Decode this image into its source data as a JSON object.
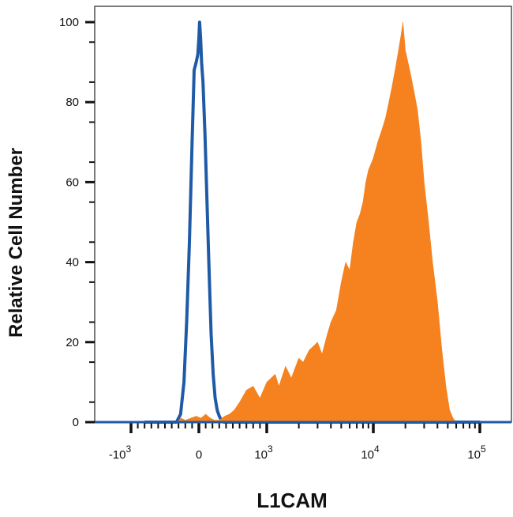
{
  "chart_data": {
    "type": "area",
    "title": "",
    "xlabel": "L1CAM",
    "ylabel": "Relative Cell Number",
    "x_scale": "biexponential",
    "ylim": [
      0,
      100
    ],
    "y_ticks": [
      "0",
      "20",
      "40",
      "60",
      "80",
      "100"
    ],
    "x_ticks": [
      {
        "base": "-10",
        "exp": "3",
        "value": -1000
      },
      {
        "base": "0",
        "exp": "",
        "value": 0
      },
      {
        "base": "10",
        "exp": "3",
        "value": 1000
      },
      {
        "base": "10",
        "exp": "4",
        "value": 10000
      },
      {
        "base": "10",
        "exp": "5",
        "value": 100000
      }
    ],
    "series": [
      {
        "style": "outline",
        "color": "#1f5aa6",
        "points": [
          [
            -800,
            0
          ],
          [
            -330,
            0
          ],
          [
            -270,
            2
          ],
          [
            -220,
            10
          ],
          [
            -180,
            25
          ],
          [
            -140,
            45
          ],
          [
            -100,
            70
          ],
          [
            -70,
            88
          ],
          [
            -40,
            90
          ],
          [
            -15,
            92
          ],
          [
            0,
            96
          ],
          [
            10,
            100
          ],
          [
            25,
            96
          ],
          [
            40,
            90
          ],
          [
            60,
            85
          ],
          [
            90,
            72
          ],
          [
            120,
            55
          ],
          [
            150,
            38
          ],
          [
            180,
            22
          ],
          [
            210,
            12
          ],
          [
            240,
            6
          ],
          [
            270,
            3
          ],
          [
            300,
            1.5
          ],
          [
            330,
            0.5
          ],
          [
            370,
            0
          ],
          [
            100000,
            0
          ]
        ]
      },
      {
        "style": "filled",
        "color": "#f5821f",
        "points": [
          [
            -330,
            0
          ],
          [
            -260,
            1
          ],
          [
            -200,
            0.5
          ],
          [
            -120,
            1
          ],
          [
            -40,
            1.5
          ],
          [
            30,
            1
          ],
          [
            100,
            2
          ],
          [
            170,
            1
          ],
          [
            230,
            0.5
          ],
          [
            300,
            0.5
          ],
          [
            380,
            1.5
          ],
          [
            450,
            2
          ],
          [
            520,
            3
          ],
          [
            600,
            5
          ],
          [
            700,
            8
          ],
          [
            800,
            9
          ],
          [
            900,
            6
          ],
          [
            1000,
            10
          ],
          [
            1200,
            12
          ],
          [
            1300,
            9
          ],
          [
            1500,
            14
          ],
          [
            1700,
            11
          ],
          [
            2000,
            16
          ],
          [
            2200,
            15
          ],
          [
            2500,
            18
          ],
          [
            3000,
            20
          ],
          [
            3300,
            17
          ],
          [
            3700,
            22
          ],
          [
            4000,
            25
          ],
          [
            4500,
            28
          ],
          [
            5000,
            35
          ],
          [
            5500,
            40
          ],
          [
            6000,
            38
          ],
          [
            6500,
            45
          ],
          [
            7000,
            50
          ],
          [
            7500,
            52
          ],
          [
            8000,
            55
          ],
          [
            8500,
            60
          ],
          [
            9000,
            63
          ],
          [
            10000,
            66
          ],
          [
            11000,
            70
          ],
          [
            12000,
            73
          ],
          [
            13000,
            76
          ],
          [
            14000,
            80
          ],
          [
            15000,
            84
          ],
          [
            16000,
            88
          ],
          [
            17000,
            92
          ],
          [
            18000,
            96
          ],
          [
            19000,
            100
          ],
          [
            20000,
            93
          ],
          [
            22000,
            88
          ],
          [
            24000,
            83
          ],
          [
            26000,
            78
          ],
          [
            28000,
            70
          ],
          [
            30000,
            60
          ],
          [
            33000,
            50
          ],
          [
            36000,
            40
          ],
          [
            40000,
            30
          ],
          [
            44000,
            18
          ],
          [
            48000,
            9
          ],
          [
            52000,
            3
          ],
          [
            56000,
            1
          ],
          [
            60000,
            0
          ],
          [
            100000,
            0
          ]
        ]
      }
    ]
  }
}
